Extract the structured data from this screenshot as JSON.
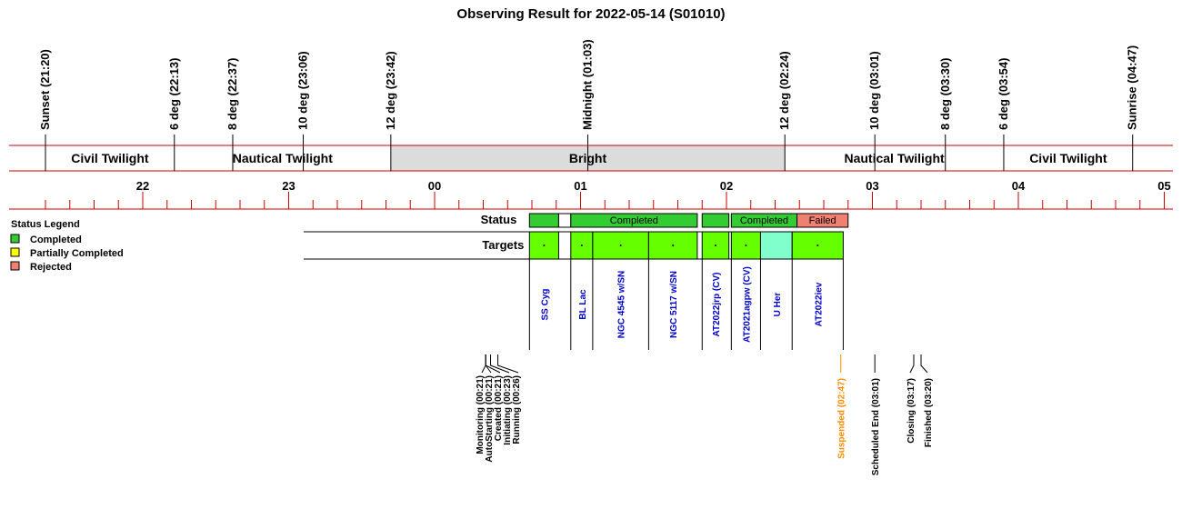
{
  "chart_data": {
    "type": "timeline",
    "title": "Observing Result for 2022-05-14 (S01010)",
    "time_axis": {
      "start": "21:20",
      "end": "05:00",
      "hour_ticks": [
        "22",
        "23",
        "00",
        "01",
        "02",
        "03",
        "04",
        "05"
      ]
    },
    "sun_events": [
      {
        "label": "Sunset (21:20)",
        "time": "21:20"
      },
      {
        "label": "6 deg (22:13)",
        "time": "22:13"
      },
      {
        "label": "8 deg (22:37)",
        "time": "22:37"
      },
      {
        "label": "10 deg (23:06)",
        "time": "23:06"
      },
      {
        "label": "12 deg (23:42)",
        "time": "23:42"
      },
      {
        "label": "Midnight (01:03)",
        "time": "01:03"
      },
      {
        "label": "12 deg (02:24)",
        "time": "02:24"
      },
      {
        "label": "10 deg (03:01)",
        "time": "03:01"
      },
      {
        "label": "8 deg (03:30)",
        "time": "03:30"
      },
      {
        "label": "6 deg (03:54)",
        "time": "03:54"
      },
      {
        "label": "Sunrise (04:47)",
        "time": "04:47"
      }
    ],
    "twilight_segments": [
      {
        "label": "Civil Twilight",
        "start": "21:20",
        "end": "22:13",
        "fill": "#ffffff"
      },
      {
        "label": "Nautical Twilight",
        "start": "22:13",
        "end": "23:42",
        "fill": "#ffffff"
      },
      {
        "label": "Bright",
        "start": "23:42",
        "end": "02:24",
        "fill": "#dcdcdc"
      },
      {
        "label": "Nautical Twilight",
        "start": "02:24",
        "end": "03:54",
        "fill": "#ffffff"
      },
      {
        "label": "Civil Twilight",
        "start": "03:54",
        "end": "04:47",
        "fill": "#ffffff"
      }
    ],
    "status_row_label": "Status",
    "targets_row_label": "Targets",
    "status_blocks": [
      {
        "start": "00:39",
        "end": "00:51",
        "label": "",
        "color": "#33cc33"
      },
      {
        "start": "00:51",
        "end": "00:56",
        "label": "",
        "color": "#ffffff"
      },
      {
        "start": "00:56",
        "end": "01:48",
        "label": "Completed",
        "color": "#33cc33"
      },
      {
        "start": "01:50",
        "end": "02:01",
        "label": "",
        "color": "#33cc33"
      },
      {
        "start": "02:02",
        "end": "02:29",
        "label": "Completed",
        "color": "#33cc33"
      },
      {
        "start": "02:29",
        "end": "02:50",
        "label": "Failed",
        "color": "#f08070"
      }
    ],
    "targets": [
      {
        "name": "SS Cyg",
        "start": "00:39",
        "end": "00:51",
        "color": "#66ff00"
      },
      {
        "name": "BL Lac",
        "start": "00:56",
        "end": "01:05",
        "color": "#66ff00"
      },
      {
        "name": "NGC 4545 w/SN",
        "start": "01:05",
        "end": "01:28",
        "color": "#66ff00"
      },
      {
        "name": "NGC 5117 w/SN",
        "start": "01:28",
        "end": "01:48",
        "color": "#66ff00"
      },
      {
        "name": "AT2022jrp (CV)",
        "start": "01:50",
        "end": "02:01",
        "color": "#66ff00"
      },
      {
        "name": "AT2021agpw (CV)",
        "start": "02:02",
        "end": "02:14",
        "color": "#66ff00"
      },
      {
        "name": "U Her",
        "start": "02:14",
        "end": "02:27",
        "color": "#80ffcc"
      },
      {
        "name": "AT2022iev",
        "start": "02:27",
        "end": "02:48",
        "color": "#66ff00"
      }
    ],
    "run_events": [
      {
        "label": "Monitoring (00:21)",
        "time": "00:21",
        "color": "#000000"
      },
      {
        "label": "AutoStarting (00:21)",
        "time": "00:21",
        "color": "#000000"
      },
      {
        "label": "Created (00:21)",
        "time": "00:21",
        "color": "#000000"
      },
      {
        "label": "Initiating (00:23)",
        "time": "00:23",
        "color": "#000000"
      },
      {
        "label": "Running (00:26)",
        "time": "00:26",
        "color": "#000000"
      },
      {
        "label": "Suspended (02:47)",
        "time": "02:47",
        "color": "#ff8c00"
      },
      {
        "label": "Scheduled End (03:01)",
        "time": "03:01",
        "color": "#000000"
      },
      {
        "label": "Closing (03:17)",
        "time": "03:17",
        "color": "#000000"
      },
      {
        "label": "Finished (03:20)",
        "time": "03:20",
        "color": "#000000"
      }
    ],
    "legend": {
      "title": "Status Legend",
      "items": [
        {
          "label": "Completed",
          "color": "#33cc33"
        },
        {
          "label": "Partially Completed",
          "color": "#ffff00"
        },
        {
          "label": "Rejected",
          "color": "#f08070"
        }
      ]
    }
  }
}
